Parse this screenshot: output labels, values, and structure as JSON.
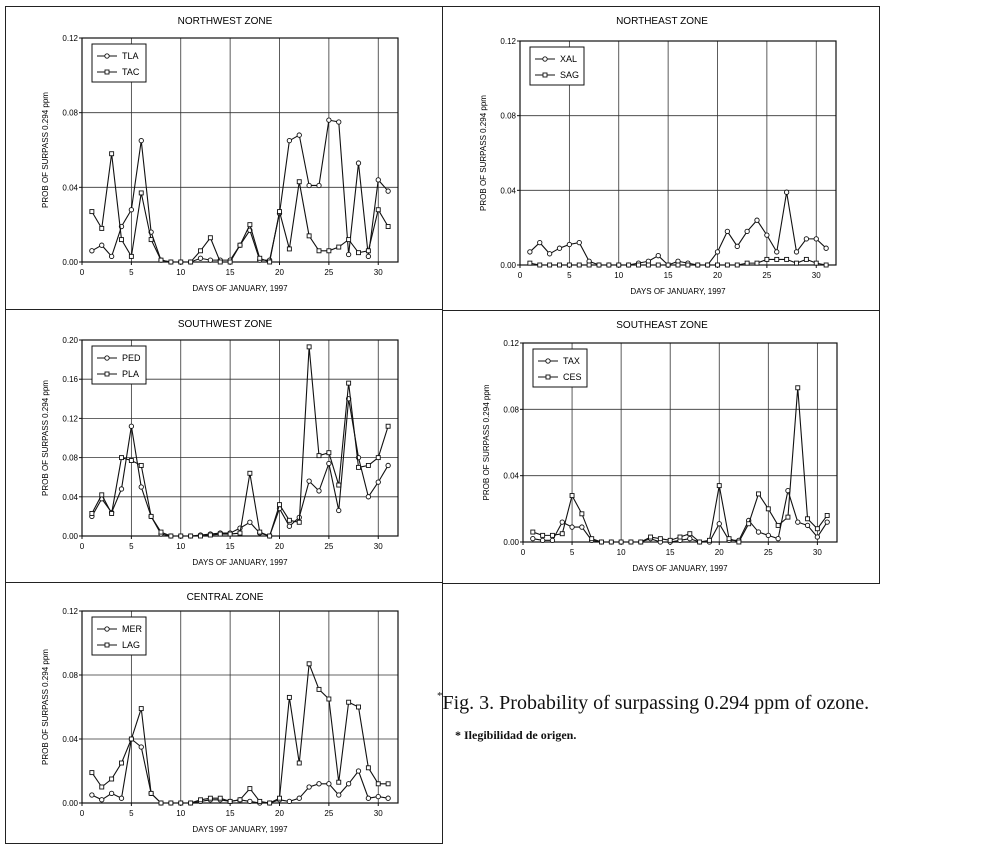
{
  "chart_data": [
    {
      "type": "line",
      "title": "NORTHWEST ZONE",
      "xlabel": "DAYS OF JANUARY, 1997",
      "ylabel": "PROB OF SURPASS 0.294 ppm",
      "xlim": [
        0,
        32
      ],
      "ylim": [
        0,
        0.12
      ],
      "yticks": [
        "0.00",
        "0.04",
        "0.08",
        "0.12"
      ],
      "xticks": [
        "0",
        "5",
        "10",
        "15",
        "20",
        "25",
        "30"
      ],
      "legend": "top-left",
      "categories": [
        1,
        2,
        3,
        4,
        5,
        6,
        7,
        8,
        9,
        10,
        11,
        12,
        13,
        14,
        15,
        16,
        17,
        18,
        19,
        20,
        21,
        22,
        23,
        24,
        25,
        26,
        27,
        28,
        29,
        30,
        31
      ],
      "series": [
        {
          "name": "TLA",
          "marker": "o",
          "values": [
            0.006,
            0.009,
            0.003,
            0.019,
            0.028,
            0.065,
            0.016,
            0.001,
            0,
            0,
            0,
            0.002,
            0.001,
            0.001,
            0.001,
            0.009,
            0.017,
            0.001,
            0.001,
            0.026,
            0.065,
            0.068,
            0.041,
            0.041,
            0.076,
            0.075,
            0.004,
            0.053,
            0.003,
            0.044,
            0.038
          ]
        },
        {
          "name": "TAC",
          "marker": "s",
          "values": [
            0.027,
            0.018,
            0.058,
            0.012,
            0.003,
            0.037,
            0.012,
            0.001,
            0,
            0,
            0,
            0.006,
            0.013,
            0,
            0,
            0.009,
            0.02,
            0.002,
            0,
            0.027,
            0.007,
            0.043,
            0.014,
            0.006,
            0.006,
            0.008,
            0.012,
            0.005,
            0.006,
            0.028,
            0.019
          ]
        }
      ]
    },
    {
      "type": "line",
      "title": "NORTHEAST ZONE",
      "xlabel": "DAYS OF JANUARY, 1997",
      "ylabel": "PROB OF SURPASS 0.294 ppm",
      "xlim": [
        0,
        32
      ],
      "ylim": [
        0,
        0.12
      ],
      "yticks": [
        "0.00",
        "0.04",
        "0.08",
        "0.12"
      ],
      "xticks": [
        "0",
        "5",
        "10",
        "15",
        "20",
        "25",
        "30"
      ],
      "legend": "top-left",
      "categories": [
        1,
        2,
        3,
        4,
        5,
        6,
        7,
        8,
        9,
        10,
        11,
        12,
        13,
        14,
        15,
        16,
        17,
        18,
        19,
        20,
        21,
        22,
        23,
        24,
        25,
        26,
        27,
        28,
        29,
        30,
        31
      ],
      "series": [
        {
          "name": "XAL",
          "marker": "o",
          "values": [
            0.007,
            0.012,
            0.006,
            0.009,
            0.011,
            0.012,
            0.002,
            0,
            0,
            0,
            0,
            0.001,
            0.002,
            0.005,
            0,
            0.002,
            0.001,
            0,
            0,
            0.007,
            0.018,
            0.01,
            0.018,
            0.024,
            0.016,
            0.007,
            0.039,
            0.007,
            0.014,
            0.014,
            0.009
          ]
        },
        {
          "name": "SAG",
          "marker": "s",
          "values": [
            0.001,
            0,
            0,
            0,
            0,
            0,
            0,
            0,
            0,
            0,
            0,
            0,
            0,
            0,
            0,
            0,
            0,
            0,
            0,
            0,
            0,
            0,
            0.001,
            0.001,
            0.003,
            0.003,
            0.003,
            0.001,
            0.003,
            0.001,
            0
          ]
        }
      ]
    },
    {
      "type": "line",
      "title": "SOUTHWEST ZONE",
      "xlabel": "DAYS OF JANUARY, 1997",
      "ylabel": "PROB OF SURPASS 0.294 ppm",
      "xlim": [
        0,
        32
      ],
      "ylim": [
        0,
        0.2
      ],
      "yticks": [
        "0.00",
        "0.04",
        "0.08",
        "0.12",
        "0.16",
        "0.20"
      ],
      "xticks": [
        "0",
        "5",
        "10",
        "15",
        "20",
        "25",
        "30"
      ],
      "legend": "top-left",
      "categories": [
        1,
        2,
        3,
        4,
        5,
        6,
        7,
        8,
        9,
        10,
        11,
        12,
        13,
        14,
        15,
        16,
        17,
        18,
        19,
        20,
        21,
        22,
        23,
        24,
        25,
        26,
        27,
        28,
        29,
        30,
        31
      ],
      "series": [
        {
          "name": "PED",
          "marker": "o",
          "values": [
            0.02,
            0.038,
            0.024,
            0.048,
            0.112,
            0.05,
            0.02,
            0.002,
            0,
            0,
            0,
            0.001,
            0.002,
            0.003,
            0.003,
            0.008,
            0.014,
            0.003,
            0,
            0.028,
            0.01,
            0.019,
            0.056,
            0.046,
            0.074,
            0.026,
            0.14,
            0.08,
            0.04,
            0.055,
            0.072
          ]
        },
        {
          "name": "PLA",
          "marker": "s",
          "values": [
            0.023,
            0.042,
            0.023,
            0.08,
            0.077,
            0.072,
            0.02,
            0.004,
            0,
            0,
            0,
            0,
            0.001,
            0.002,
            0.002,
            0.003,
            0.064,
            0.004,
            0,
            0.032,
            0.016,
            0.014,
            0.193,
            0.082,
            0.085,
            0.052,
            0.156,
            0.07,
            0.072,
            0.08,
            0.112
          ]
        }
      ]
    },
    {
      "type": "line",
      "title": "SOUTHEAST ZONE",
      "xlabel": "DAYS OF JANUARY, 1997",
      "ylabel": "PROB OF SURPASS 0.294 ppm",
      "xlim": [
        0,
        32
      ],
      "ylim": [
        0,
        0.12
      ],
      "yticks": [
        "0.00",
        "0.04",
        "0.08",
        "0.12"
      ],
      "xticks": [
        "0",
        "5",
        "10",
        "15",
        "20",
        "25",
        "30"
      ],
      "legend": "top-left",
      "categories": [
        1,
        2,
        3,
        4,
        5,
        6,
        7,
        8,
        9,
        10,
        11,
        12,
        13,
        14,
        15,
        16,
        17,
        18,
        19,
        20,
        21,
        22,
        23,
        24,
        25,
        26,
        27,
        28,
        29,
        30,
        31
      ],
      "series": [
        {
          "name": "TAX",
          "marker": "o",
          "values": [
            0.002,
            0.001,
            0.001,
            0.012,
            0.009,
            0.009,
            0.001,
            0,
            0,
            0,
            0,
            0,
            0.002,
            0,
            0,
            0.001,
            0.002,
            0,
            0,
            0.011,
            0.001,
            0.001,
            0.013,
            0.006,
            0.004,
            0.002,
            0.031,
            0.012,
            0.01,
            0.003,
            0.012
          ]
        },
        {
          "name": "CES",
          "marker": "s",
          "values": [
            0.006,
            0.004,
            0.004,
            0.005,
            0.028,
            0.017,
            0.002,
            0,
            0,
            0,
            0,
            0,
            0.003,
            0.002,
            0.001,
            0.003,
            0.005,
            0,
            0.001,
            0.034,
            0.002,
            0,
            0.011,
            0.029,
            0.02,
            0.01,
            0.015,
            0.093,
            0.014,
            0.008,
            0.016
          ]
        }
      ]
    },
    {
      "type": "line",
      "title": "CENTRAL ZONE",
      "xlabel": "DAYS OF JANUARY, 1997",
      "ylabel": "PROB OF SURPASS 0.294 ppm",
      "xlim": [
        0,
        32
      ],
      "ylim": [
        0,
        0.12
      ],
      "yticks": [
        "0.00",
        "0.04",
        "0.08",
        "0.12"
      ],
      "xticks": [
        "0",
        "5",
        "10",
        "15",
        "20",
        "25",
        "30"
      ],
      "legend": "top-left",
      "categories": [
        1,
        2,
        3,
        4,
        5,
        6,
        7,
        8,
        9,
        10,
        11,
        12,
        13,
        14,
        15,
        16,
        17,
        18,
        19,
        20,
        21,
        22,
        23,
        24,
        25,
        26,
        27,
        28,
        29,
        30,
        31
      ],
      "series": [
        {
          "name": "MER",
          "marker": "o",
          "values": [
            0.005,
            0.002,
            0.006,
            0.003,
            0.04,
            0.035,
            0.006,
            0,
            0,
            0,
            0,
            0.001,
            0.002,
            0.002,
            0.001,
            0.002,
            0.001,
            0,
            0,
            0.002,
            0.001,
            0.003,
            0.01,
            0.012,
            0.012,
            0.005,
            0.012,
            0.02,
            0.003,
            0.004,
            0.003
          ]
        },
        {
          "name": "LAG",
          "marker": "s",
          "values": [
            0.019,
            0.01,
            0.015,
            0.025,
            0.04,
            0.059,
            0.006,
            0,
            0,
            0,
            0,
            0.002,
            0.003,
            0.003,
            0.001,
            0.002,
            0.009,
            0.001,
            0,
            0.003,
            0.066,
            0.025,
            0.087,
            0.071,
            0.065,
            0.013,
            0.063,
            0.06,
            0.022,
            0.012,
            0.012
          ]
        }
      ]
    }
  ],
  "caption": {
    "marker": "*",
    "text": "Fig. 3. Probability of surpassing 0.294 ppm of ozone."
  },
  "note": "* Ilegibilidad de origen."
}
